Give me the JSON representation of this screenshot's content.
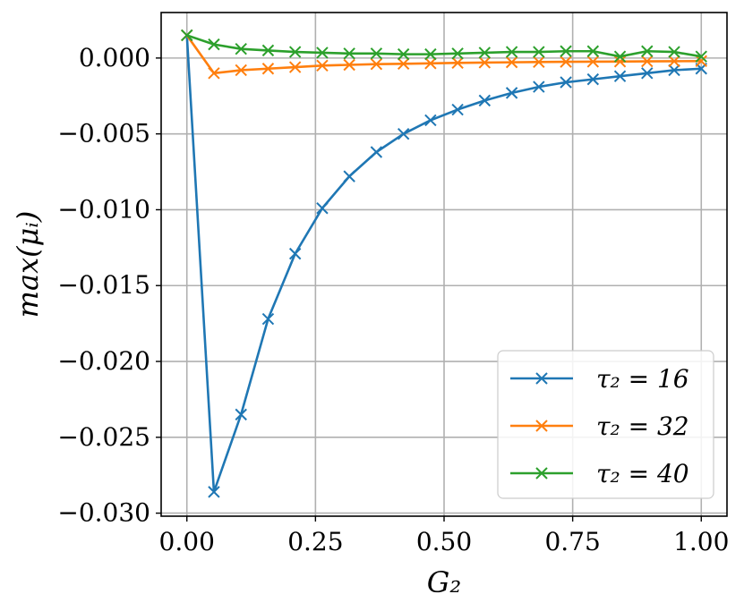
{
  "chart_data": {
    "type": "line",
    "xlabel": "G₂",
    "ylabel": "max(μᵢ)",
    "xlim": [
      -0.05,
      1.05
    ],
    "ylim": [
      -0.0302,
      0.003
    ],
    "xticks": [
      0.0,
      0.25,
      0.5,
      0.75,
      1.0
    ],
    "xtick_labels": [
      "0.00",
      "0.25",
      "0.50",
      "0.75",
      "1.00"
    ],
    "yticks": [
      0.0,
      -0.005,
      -0.01,
      -0.015,
      -0.02,
      -0.025,
      -0.03
    ],
    "ytick_labels": [
      "0.000",
      "−0.005",
      "−0.010",
      "−0.015",
      "−0.020",
      "−0.025",
      "−0.030"
    ],
    "grid": true,
    "legend_position": "bottom-right",
    "x": [
      0.0,
      0.0526,
      0.1053,
      0.1579,
      0.2105,
      0.2632,
      0.3158,
      0.3684,
      0.4211,
      0.4737,
      0.5263,
      0.5789,
      0.6316,
      0.6842,
      0.7368,
      0.7895,
      0.8421,
      0.8947,
      0.9474,
      1.0
    ],
    "series": [
      {
        "name": "τ₂ = 16",
        "color": "#1f77b4",
        "values": [
          0.0015,
          -0.0286,
          -0.0235,
          -0.0172,
          -0.0129,
          -0.0099,
          -0.0078,
          -0.0062,
          -0.005,
          -0.0041,
          -0.0034,
          -0.0028,
          -0.0023,
          -0.0019,
          -0.0016,
          -0.0014,
          -0.0012,
          -0.001,
          -0.0008,
          -0.0007
        ]
      },
      {
        "name": "τ₂ = 32",
        "color": "#ff7f0e",
        "values": [
          0.0015,
          -0.001,
          -0.0008,
          -0.0007,
          -0.0006,
          -0.0005,
          -0.00045,
          -0.0004,
          -0.00038,
          -0.00035,
          -0.00032,
          -0.0003,
          -0.00028,
          -0.00026,
          -0.00025,
          -0.00024,
          -0.00023,
          -0.00022,
          -0.00021,
          -0.0002
        ]
      },
      {
        "name": "τ₂ = 40",
        "color": "#2ca02c",
        "values": [
          0.0015,
          0.0009,
          0.0006,
          0.0005,
          0.0004,
          0.00035,
          0.0003,
          0.0003,
          0.00025,
          0.00025,
          0.0003,
          0.00035,
          0.0004,
          0.0004,
          0.00045,
          0.00045,
          0.0001,
          0.00045,
          0.0004,
          0.0001
        ]
      }
    ]
  }
}
